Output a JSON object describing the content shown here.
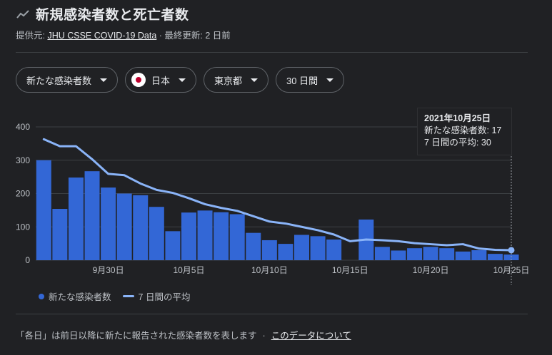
{
  "header": {
    "title": "新規感染者数と死亡者数",
    "source_prefix": "提供元: ",
    "source_link": "JHU CSSE COVID-19 Data",
    "updated": " · 最終更新: 2 日前"
  },
  "filters": [
    {
      "label": "新たな感染者数"
    },
    {
      "label": "日本",
      "flag": true
    },
    {
      "label": "東京都"
    },
    {
      "label": "30 日間"
    }
  ],
  "tooltip": {
    "date": "2021年10月25日",
    "line1": "新たな感染者数: 17",
    "line2": "7 日間の平均: 30"
  },
  "legend": {
    "bars": "新たな感染者数",
    "line": "7 日間の平均"
  },
  "footer": {
    "note": "「各日」は前日以降に新たに報告された感染者数を表します",
    "separator": "·",
    "link": "このデータについて"
  },
  "colors": {
    "bar": "#3367d6",
    "line": "#8ab4f8",
    "grid": "#3c4043",
    "text": "#bdc1c6"
  },
  "chart_data": {
    "type": "bar",
    "ylim": [
      0,
      400
    ],
    "yticks": [
      0,
      100,
      200,
      300,
      400
    ],
    "x_ticks": [
      {
        "label": "9月30日",
        "index": 4
      },
      {
        "label": "10月5日",
        "index": 9
      },
      {
        "label": "10月10日",
        "index": 14
      },
      {
        "label": "10月15日",
        "index": 19
      },
      {
        "label": "10月20日",
        "index": 24
      },
      {
        "label": "10月25日",
        "index": 29
      }
    ],
    "series": [
      {
        "name": "新たな感染者数",
        "values": [
          300,
          154,
          248,
          267,
          218,
          200,
          195,
          160,
          87,
          143,
          149,
          144,
          138,
          82,
          60,
          49,
          76,
          72,
          62,
          0,
          122,
          40,
          29,
          36,
          40,
          36,
          26,
          30,
          19,
          17
        ]
      },
      {
        "name": "7 日間の平均",
        "values": [
          363,
          342,
          342,
          303,
          259,
          255,
          230,
          211,
          202,
          186,
          168,
          157,
          148,
          132,
          116,
          110,
          100,
          90,
          77,
          57,
          62,
          60,
          57,
          51,
          48,
          45,
          48,
          35,
          31,
          30
        ]
      }
    ]
  }
}
